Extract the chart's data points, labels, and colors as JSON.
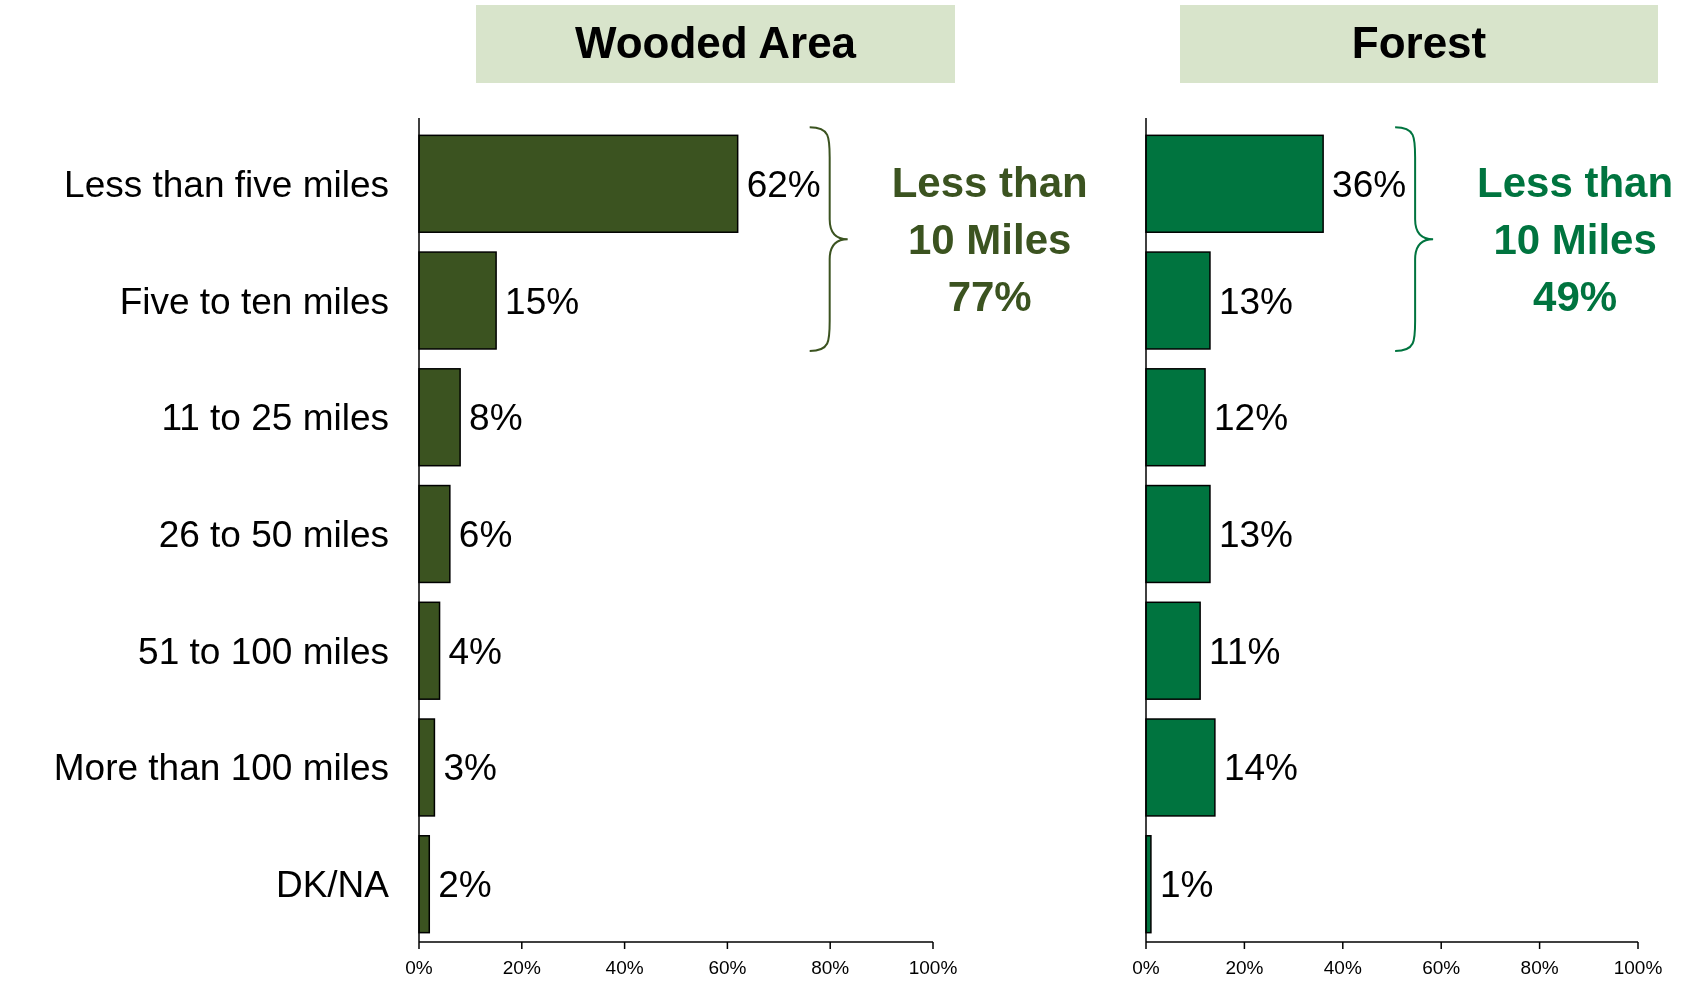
{
  "chart_data": [
    {
      "type": "bar",
      "orientation": "horizontal",
      "title": "Wooded Area",
      "categories": [
        "Less than five miles",
        "Five to ten miles",
        "11 to 25 miles",
        "26 to 50 miles",
        "51 to 100 miles",
        "More than 100 miles",
        "DK/NA"
      ],
      "values": [
        62,
        15,
        8,
        6,
        4,
        3,
        2
      ],
      "value_labels": [
        "62%",
        "15%",
        "8%",
        "6%",
        "4%",
        "3%",
        "2%"
      ],
      "color": "#3b5320",
      "xlim": [
        0,
        100
      ],
      "xticks": [
        {
          "value": 0,
          "label": "0%"
        },
        {
          "value": 20,
          "label": "20%"
        },
        {
          "value": 40,
          "label": "40%"
        },
        {
          "value": 60,
          "label": "60%"
        },
        {
          "value": 80,
          "label": "80%"
        },
        {
          "value": 100,
          "label": "100%"
        }
      ],
      "annotations": [
        "Less than\n10 Miles\n77%"
      ],
      "grid": false
    },
    {
      "type": "bar",
      "orientation": "horizontal",
      "title": "Forest",
      "categories": [
        null,
        null,
        null,
        null,
        null,
        null,
        null
      ],
      "values": [
        36,
        13,
        12,
        13,
        11,
        14,
        1
      ],
      "value_labels": [
        "36%",
        "13%",
        "12%",
        "13%",
        "11%",
        "14%",
        "1%"
      ],
      "color": "#00743f",
      "xlim": [
        0,
        100
      ],
      "xticks": [
        {
          "value": 0,
          "label": "0%"
        },
        {
          "value": 20,
          "label": "20%"
        },
        {
          "value": 40,
          "label": "40%"
        },
        {
          "value": 60,
          "label": "60%"
        },
        {
          "value": 80,
          "label": "80%"
        },
        {
          "value": 100,
          "label": "100%"
        }
      ],
      "annotations": [
        "Less than\n10 Miles\n49%"
      ],
      "tick_labels": "x",
      "grid": false
    }
  ]
}
